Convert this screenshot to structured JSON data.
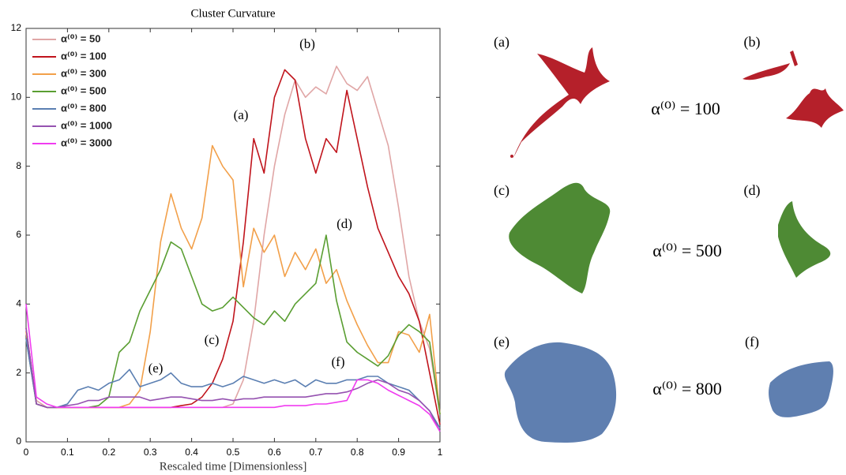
{
  "chart_data": {
    "type": "line",
    "title": "Cluster Curvature",
    "x_label": "Rescaled time [Dimensionless]",
    "x": [
      0,
      0.025,
      0.05,
      0.075,
      0.1,
      0.125,
      0.15,
      0.175,
      0.2,
      0.225,
      0.25,
      0.275,
      0.3,
      0.325,
      0.35,
      0.375,
      0.4,
      0.425,
      0.45,
      0.475,
      0.5,
      0.525,
      0.55,
      0.575,
      0.6,
      0.625,
      0.65,
      0.675,
      0.7,
      0.725,
      0.75,
      0.775,
      0.8,
      0.825,
      0.85,
      0.875,
      0.9,
      0.925,
      0.95,
      0.975,
      1
    ],
    "xlim": [
      0,
      1
    ],
    "xticks": [
      0,
      0.1,
      0.2,
      0.3,
      0.4,
      0.5,
      0.6,
      0.7,
      0.8,
      0.9,
      1
    ],
    "ylim": [
      0,
      12
    ],
    "yticks": [
      0,
      2,
      4,
      6,
      8,
      10,
      12
    ],
    "grid": false,
    "legend": "upper-left",
    "series": [
      {
        "name": "α⁽⁰⁾ = 50",
        "color": "#e0a6a6",
        "values": [
          3.2,
          1.2,
          1,
          1,
          1,
          1,
          1,
          1,
          1,
          1,
          1,
          1,
          1,
          1,
          1,
          1,
          1,
          1,
          1,
          1,
          1.1,
          1.8,
          3.5,
          6,
          8,
          9.5,
          10.5,
          10,
          10.3,
          10.1,
          10.9,
          10.4,
          10.2,
          10.6,
          9.6,
          8.6,
          6.8,
          4.8,
          3.5,
          2.7,
          0.8
        ]
      },
      {
        "name": "α⁽⁰⁾ = 100",
        "color": "#c0141c",
        "values": [
          3.3,
          1.1,
          1,
          1,
          1,
          1,
          1,
          1,
          1,
          1,
          1,
          1,
          1,
          1,
          1,
          1.05,
          1.1,
          1.3,
          1.7,
          2.4,
          3.5,
          5.8,
          8.8,
          7.8,
          10,
          10.8,
          10.5,
          8.8,
          7.8,
          8.8,
          8.4,
          10.2,
          8.8,
          7.4,
          6.2,
          5.5,
          4.8,
          4.3,
          3.5,
          2,
          0.5
        ]
      },
      {
        "name": "α⁽⁰⁾ = 300",
        "color": "#f2a04a",
        "values": [
          3.2,
          1.1,
          1,
          1,
          1,
          1,
          1,
          1,
          1,
          1,
          1.1,
          1.5,
          3.2,
          5.8,
          7.2,
          6.2,
          5.6,
          6.5,
          8.6,
          8,
          7.6,
          4.5,
          6.2,
          5.5,
          6,
          4.8,
          5.5,
          5,
          5.6,
          4.6,
          5,
          4.1,
          3.4,
          2.8,
          2.3,
          2.3,
          3.2,
          3.1,
          2.6,
          3.7,
          0.8
        ]
      },
      {
        "name": "α⁽⁰⁾ = 500",
        "color": "#5a9e32",
        "values": [
          3,
          1.1,
          1,
          1,
          1,
          1,
          1,
          1.05,
          1.3,
          2.6,
          2.9,
          3.8,
          4.4,
          5,
          5.8,
          5.6,
          4.8,
          4,
          3.8,
          3.9,
          4.2,
          3.9,
          3.6,
          3.4,
          3.8,
          3.5,
          4,
          4.3,
          4.6,
          6,
          4.1,
          2.9,
          2.6,
          2.4,
          2.2,
          2.5,
          3.1,
          3.4,
          3.2,
          2.9,
          0.8
        ]
      },
      {
        "name": "α⁽⁰⁾ = 800",
        "color": "#5b7fb2",
        "values": [
          3,
          1.1,
          1,
          1,
          1.1,
          1.5,
          1.6,
          1.5,
          1.7,
          1.8,
          2.1,
          1.6,
          1.7,
          1.8,
          2,
          1.7,
          1.6,
          1.6,
          1.7,
          1.6,
          1.7,
          1.9,
          1.8,
          1.7,
          1.8,
          1.7,
          1.8,
          1.6,
          1.8,
          1.7,
          1.7,
          1.8,
          1.8,
          1.9,
          1.9,
          1.7,
          1.6,
          1.5,
          1.2,
          0.9,
          0.4
        ]
      },
      {
        "name": "α⁽⁰⁾ = 1000",
        "color": "#9552b0",
        "values": [
          3.3,
          1.1,
          1,
          1,
          1.05,
          1.1,
          1.2,
          1.2,
          1.3,
          1.3,
          1.3,
          1.3,
          1.2,
          1.25,
          1.3,
          1.3,
          1.25,
          1.2,
          1.2,
          1.25,
          1.2,
          1.25,
          1.25,
          1.3,
          1.3,
          1.3,
          1.3,
          1.3,
          1.35,
          1.4,
          1.4,
          1.45,
          1.55,
          1.7,
          1.8,
          1.7,
          1.5,
          1.4,
          1.2,
          0.9,
          0.3
        ]
      },
      {
        "name": "α⁽⁰⁾ = 3000",
        "color": "#f03cf0",
        "values": [
          4,
          1.3,
          1.1,
          1,
          1,
          1,
          1,
          1,
          1,
          1,
          1,
          1,
          1,
          1,
          1,
          1,
          1,
          1,
          1,
          1,
          1,
          1,
          1,
          1,
          1,
          1.05,
          1.05,
          1.05,
          1.1,
          1.1,
          1.15,
          1.2,
          1.8,
          1.8,
          1.7,
          1.5,
          1.35,
          1.2,
          1.05,
          0.8,
          0.3
        ]
      }
    ],
    "annotations": [
      "(a)",
      "(b)",
      "(c)",
      "(d)",
      "(e)",
      "(f)"
    ]
  },
  "panels": {
    "labels": [
      "(a)",
      "(b)",
      "(c)",
      "(d)",
      "(e)",
      "(f)"
    ],
    "alpha_labels": [
      "α⁽⁰⁾ = 100",
      "α⁽⁰⁾ = 500",
      "α⁽⁰⁾ = 800"
    ]
  }
}
